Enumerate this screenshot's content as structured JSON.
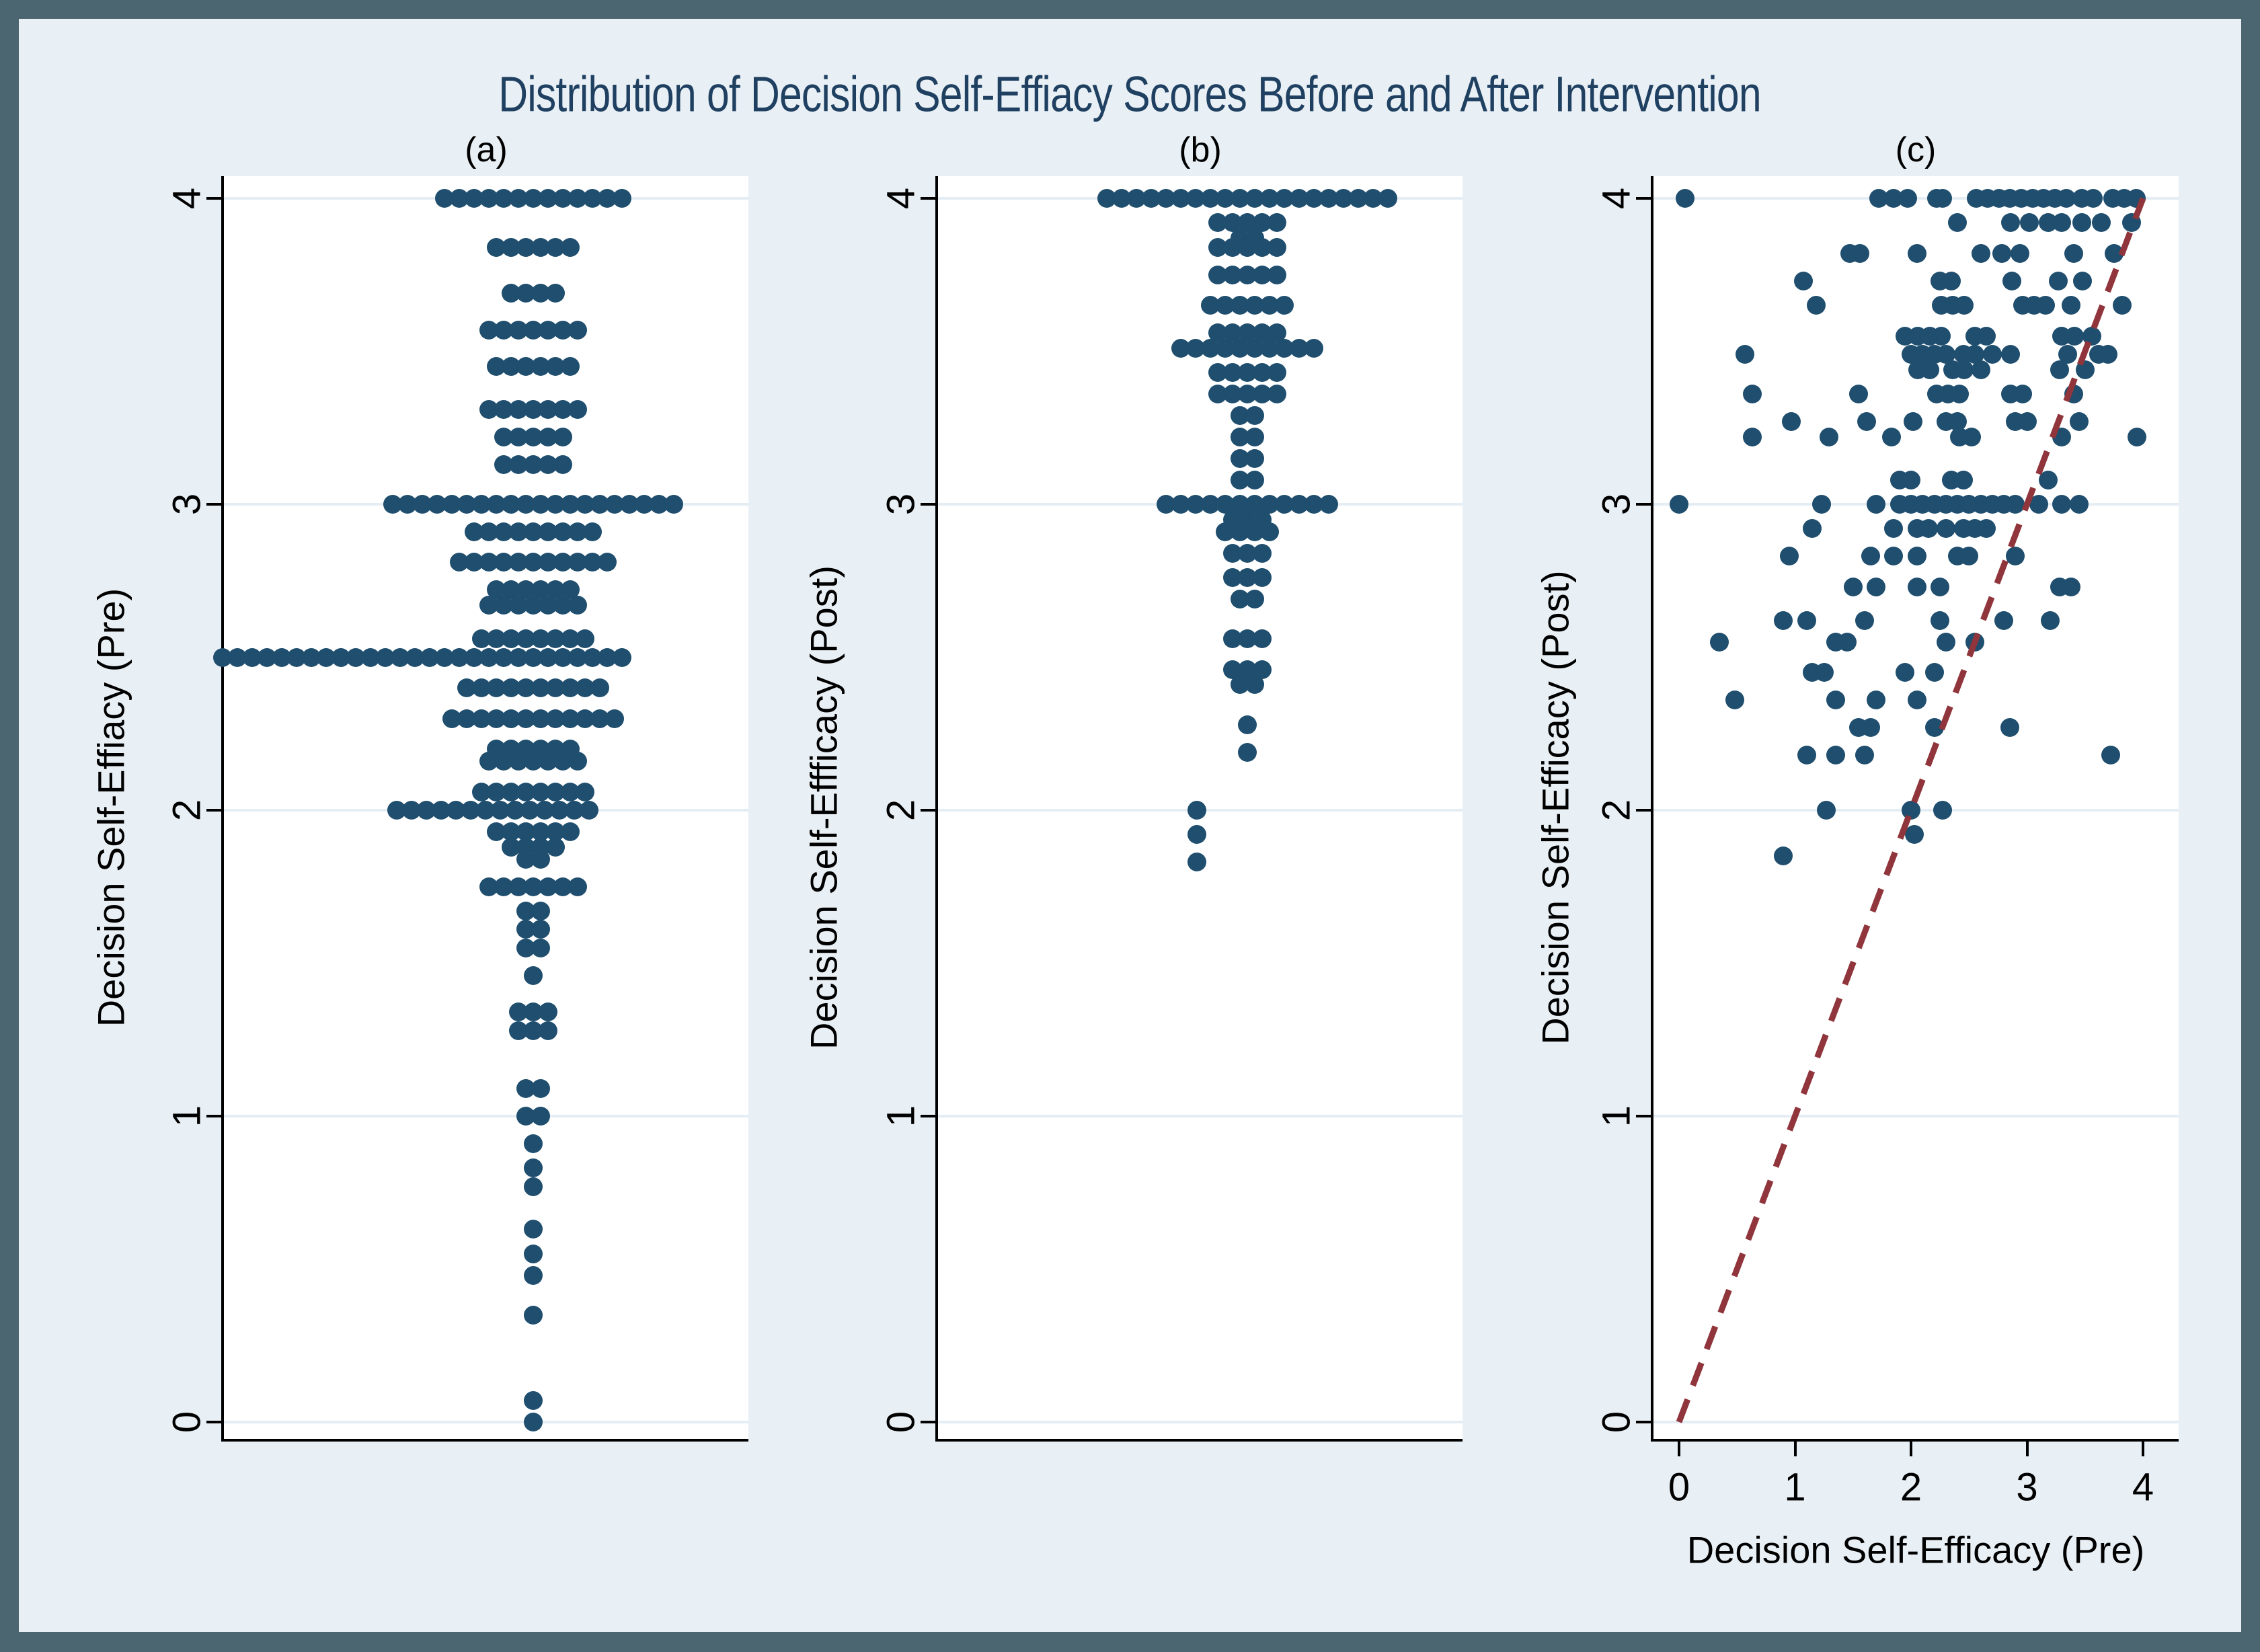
{
  "title": "Distribution of Decision Self-Effiacy Scores Before and After Intervention",
  "colors": {
    "frame": "#4b6671",
    "canvas_background": "#e9f0f5",
    "plot_background": "#ffffff",
    "gridline": "#e4edf3",
    "marker": "#1f4e6e",
    "reference_line": "#90353b",
    "title_text": "#1f4061",
    "axis_text": "#000000"
  },
  "chart_data": [
    {
      "type": "strip",
      "panel_label": "(a)",
      "ylabel": "Decision Self-Effiacy (Pre)",
      "ylim": [
        0,
        4
      ],
      "yticks": [
        0,
        1,
        2,
        3,
        4
      ],
      "grid": "horizontal",
      "legend": "none",
      "description": "Stacked dot plot of pre-intervention scores; each row is [score, count, optional_x_offset_px]",
      "rows": [
        [
          4.0,
          13
        ],
        [
          3.84,
          6
        ],
        [
          3.69,
          4
        ],
        [
          3.57,
          7
        ],
        [
          3.45,
          6
        ],
        [
          3.31,
          7
        ],
        [
          3.22,
          5
        ],
        [
          3.13,
          5
        ],
        [
          3.0,
          20
        ],
        [
          2.91,
          9
        ],
        [
          2.81,
          11
        ],
        [
          2.72,
          6
        ],
        [
          2.67,
          7
        ],
        [
          2.56,
          8
        ],
        [
          2.5,
          28,
          -165
        ],
        [
          2.4,
          10
        ],
        [
          2.3,
          12
        ],
        [
          2.2,
          6
        ],
        [
          2.16,
          7
        ],
        [
          2.06,
          8
        ],
        [
          2.0,
          14,
          -60
        ],
        [
          1.93,
          6
        ],
        [
          1.88,
          4
        ],
        [
          1.84,
          2
        ],
        [
          1.75,
          7
        ],
        [
          1.67,
          2
        ],
        [
          1.61,
          2
        ],
        [
          1.55,
          2
        ],
        [
          1.46,
          1
        ],
        [
          1.34,
          3
        ],
        [
          1.28,
          3
        ],
        [
          1.09,
          2
        ],
        [
          1.0,
          2
        ],
        [
          0.91,
          1
        ],
        [
          0.83,
          1
        ],
        [
          0.77,
          1
        ],
        [
          0.63,
          1
        ],
        [
          0.55,
          1
        ],
        [
          0.48,
          1
        ],
        [
          0.35,
          1
        ],
        [
          0.07,
          1
        ],
        [
          0.0,
          1
        ]
      ]
    },
    {
      "type": "strip",
      "panel_label": "(b)",
      "ylabel": "Decision Self-Effficacy (Post)",
      "ylim": [
        0,
        4
      ],
      "yticks": [
        0,
        1,
        2,
        3,
        4
      ],
      "grid": "horizontal",
      "legend": "none",
      "description": "Stacked dot plot of post-intervention scores; each row is [score, count, optional_x_offset_px]",
      "rows": [
        [
          4.0,
          20
        ],
        [
          3.92,
          5
        ],
        [
          3.87,
          2
        ],
        [
          3.84,
          5
        ],
        [
          3.75,
          5
        ],
        [
          3.65,
          6
        ],
        [
          3.56,
          5
        ],
        [
          3.51,
          10
        ],
        [
          3.43,
          5
        ],
        [
          3.36,
          5
        ],
        [
          3.29,
          2
        ],
        [
          3.22,
          2
        ],
        [
          3.15,
          2
        ],
        [
          3.08,
          2
        ],
        [
          3.0,
          12
        ],
        [
          2.95,
          3
        ],
        [
          2.91,
          4
        ],
        [
          2.84,
          3
        ],
        [
          2.76,
          3
        ],
        [
          2.69,
          2
        ],
        [
          2.56,
          3
        ],
        [
          2.46,
          3
        ],
        [
          2.41,
          2
        ],
        [
          2.28,
          1
        ],
        [
          2.19,
          1
        ],
        [
          2.0,
          1,
          -75
        ],
        [
          1.92,
          1,
          -75
        ],
        [
          1.83,
          1,
          -75
        ]
      ]
    },
    {
      "type": "scatter",
      "panel_label": "(c)",
      "xlabel": "Decision Self-Efficacy (Pre)",
      "ylabel": "Decision Self-Efficacy (Post)",
      "xlim": [
        0,
        4
      ],
      "ylim": [
        0,
        4
      ],
      "xticks": [
        0,
        1,
        2,
        3,
        4
      ],
      "yticks": [
        0,
        1,
        2,
        3,
        4
      ],
      "grid": "horizontal",
      "legend": "none",
      "reference_line": {
        "style": "dashed",
        "color": "#90353b",
        "from": [
          0,
          0
        ],
        "to": [
          4,
          4
        ]
      },
      "points": [
        [
          0.05,
          4
        ],
        [
          1.72,
          4
        ],
        [
          1.85,
          4
        ],
        [
          1.97,
          4
        ],
        [
          2.22,
          4
        ],
        [
          2.27,
          4
        ],
        [
          2.56,
          4
        ],
        [
          2.66,
          4
        ],
        [
          2.76,
          4
        ],
        [
          2.85,
          4
        ],
        [
          2.95,
          4
        ],
        [
          3.05,
          4
        ],
        [
          3.14,
          4
        ],
        [
          3.24,
          4
        ],
        [
          3.34,
          4
        ],
        [
          3.47,
          4
        ],
        [
          3.57,
          4
        ],
        [
          3.74,
          4
        ],
        [
          3.84,
          4
        ],
        [
          3.94,
          4
        ],
        [
          2.4,
          3.92
        ],
        [
          2.86,
          3.92
        ],
        [
          3.02,
          3.92
        ],
        [
          3.18,
          3.92
        ],
        [
          3.3,
          3.92
        ],
        [
          3.47,
          3.92
        ],
        [
          3.64,
          3.92
        ],
        [
          3.9,
          3.92
        ],
        [
          1.47,
          3.82
        ],
        [
          1.56,
          3.82
        ],
        [
          2.05,
          3.82
        ],
        [
          2.6,
          3.82
        ],
        [
          2.78,
          3.82
        ],
        [
          2.94,
          3.82
        ],
        [
          3.4,
          3.82
        ],
        [
          3.75,
          3.82
        ],
        [
          1.07,
          3.73
        ],
        [
          2.25,
          3.73
        ],
        [
          2.35,
          3.73
        ],
        [
          2.87,
          3.73
        ],
        [
          3.27,
          3.73
        ],
        [
          3.48,
          3.73
        ],
        [
          1.18,
          3.65
        ],
        [
          2.26,
          3.65
        ],
        [
          2.36,
          3.65
        ],
        [
          2.46,
          3.65
        ],
        [
          2.96,
          3.65
        ],
        [
          3.06,
          3.65
        ],
        [
          3.16,
          3.65
        ],
        [
          3.38,
          3.65
        ],
        [
          3.82,
          3.65
        ],
        [
          1.95,
          3.55
        ],
        [
          2.06,
          3.55
        ],
        [
          2.16,
          3.55
        ],
        [
          2.26,
          3.55
        ],
        [
          2.55,
          3.55
        ],
        [
          2.65,
          3.55
        ],
        [
          3.3,
          3.55
        ],
        [
          3.41,
          3.55
        ],
        [
          3.56,
          3.55
        ],
        [
          0.57,
          3.49
        ],
        [
          2.0,
          3.49
        ],
        [
          2.1,
          3.49
        ],
        [
          2.2,
          3.49
        ],
        [
          2.3,
          3.49
        ],
        [
          2.45,
          3.49
        ],
        [
          2.55,
          3.49
        ],
        [
          2.7,
          3.49
        ],
        [
          2.86,
          3.49
        ],
        [
          3.35,
          3.49
        ],
        [
          3.62,
          3.49
        ],
        [
          3.7,
          3.49
        ],
        [
          2.06,
          3.44
        ],
        [
          2.16,
          3.44
        ],
        [
          2.36,
          3.44
        ],
        [
          2.46,
          3.44
        ],
        [
          2.6,
          3.44
        ],
        [
          3.28,
          3.44
        ],
        [
          3.5,
          3.44
        ],
        [
          0.63,
          3.36
        ],
        [
          1.55,
          3.36
        ],
        [
          2.22,
          3.36
        ],
        [
          2.32,
          3.36
        ],
        [
          2.42,
          3.36
        ],
        [
          2.86,
          3.36
        ],
        [
          2.96,
          3.36
        ],
        [
          3.4,
          3.36
        ],
        [
          0.97,
          3.27
        ],
        [
          1.62,
          3.27
        ],
        [
          2.02,
          3.27
        ],
        [
          2.3,
          3.27
        ],
        [
          2.4,
          3.27
        ],
        [
          2.9,
          3.27
        ],
        [
          3.0,
          3.27
        ],
        [
          3.45,
          3.27
        ],
        [
          0.63,
          3.22
        ],
        [
          1.29,
          3.22
        ],
        [
          1.83,
          3.22
        ],
        [
          2.42,
          3.22
        ],
        [
          2.52,
          3.22
        ],
        [
          3.3,
          3.22
        ],
        [
          3.95,
          3.22
        ],
        [
          1.9,
          3.08
        ],
        [
          2.0,
          3.08
        ],
        [
          2.35,
          3.08
        ],
        [
          2.45,
          3.08
        ],
        [
          3.18,
          3.08
        ],
        [
          0.0,
          3.0
        ],
        [
          1.23,
          3.0
        ],
        [
          1.7,
          3.0
        ],
        [
          1.9,
          3.0
        ],
        [
          2.0,
          3.0
        ],
        [
          2.1,
          3.0
        ],
        [
          2.2,
          3.0
        ],
        [
          2.3,
          3.0
        ],
        [
          2.4,
          3.0
        ],
        [
          2.5,
          3.0
        ],
        [
          2.6,
          3.0
        ],
        [
          2.7,
          3.0
        ],
        [
          2.8,
          3.0
        ],
        [
          2.9,
          3.0
        ],
        [
          3.1,
          3.0
        ],
        [
          3.3,
          3.0
        ],
        [
          3.45,
          3.0
        ],
        [
          1.15,
          2.92
        ],
        [
          1.85,
          2.92
        ],
        [
          2.05,
          2.92
        ],
        [
          2.15,
          2.92
        ],
        [
          2.3,
          2.92
        ],
        [
          2.45,
          2.92
        ],
        [
          2.55,
          2.92
        ],
        [
          2.65,
          2.92
        ],
        [
          0.95,
          2.83
        ],
        [
          1.65,
          2.83
        ],
        [
          1.85,
          2.83
        ],
        [
          2.05,
          2.83
        ],
        [
          2.4,
          2.83
        ],
        [
          2.5,
          2.83
        ],
        [
          2.9,
          2.83
        ],
        [
          1.5,
          2.73
        ],
        [
          1.7,
          2.73
        ],
        [
          2.05,
          2.73
        ],
        [
          2.25,
          2.73
        ],
        [
          3.28,
          2.73
        ],
        [
          3.38,
          2.73
        ],
        [
          0.9,
          2.62
        ],
        [
          1.1,
          2.62
        ],
        [
          1.6,
          2.62
        ],
        [
          2.25,
          2.62
        ],
        [
          2.8,
          2.62
        ],
        [
          3.2,
          2.62
        ],
        [
          0.35,
          2.55
        ],
        [
          1.35,
          2.55
        ],
        [
          1.45,
          2.55
        ],
        [
          2.3,
          2.55
        ],
        [
          2.55,
          2.55
        ],
        [
          1.15,
          2.45
        ],
        [
          1.25,
          2.45
        ],
        [
          1.95,
          2.45
        ],
        [
          2.2,
          2.45
        ],
        [
          0.48,
          2.36
        ],
        [
          1.35,
          2.36
        ],
        [
          1.7,
          2.36
        ],
        [
          2.05,
          2.36
        ],
        [
          1.55,
          2.27
        ],
        [
          1.65,
          2.27
        ],
        [
          2.2,
          2.27
        ],
        [
          2.85,
          2.27
        ],
        [
          1.1,
          2.18
        ],
        [
          1.35,
          2.18
        ],
        [
          1.6,
          2.18
        ],
        [
          3.72,
          2.18
        ],
        [
          1.27,
          2.0
        ],
        [
          2.0,
          2.0
        ],
        [
          2.27,
          2.0
        ],
        [
          2.03,
          1.92
        ],
        [
          0.9,
          1.85
        ]
      ]
    }
  ]
}
